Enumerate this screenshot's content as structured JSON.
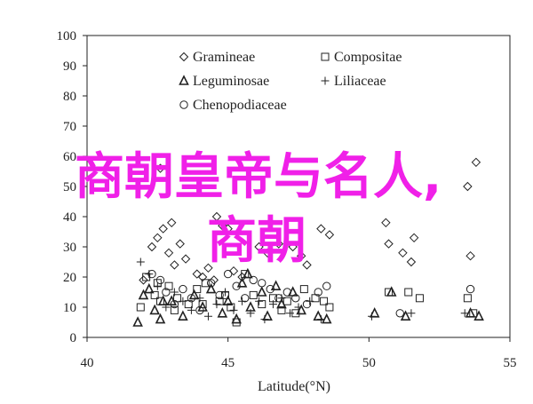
{
  "overlay": {
    "line1": "商朝皇帝与名人,",
    "line2": "商朝",
    "color": "#f020e8"
  },
  "chart_data": {
    "type": "scatter",
    "xlabel": "Latitude(°N)",
    "ylabel": "",
    "xlim": [
      40,
      55
    ],
    "ylim": [
      0,
      100
    ],
    "xticks": [
      "40",
      "45",
      "50",
      "55"
    ],
    "yticks": [
      "0",
      "10",
      "20",
      "30",
      "40",
      "50",
      "60",
      "70",
      "80",
      "90",
      "100"
    ],
    "legend_position": "top-center",
    "grid": false,
    "series": [
      {
        "name": "Gramineae",
        "marker": "diamond",
        "points": [
          [
            42.0,
            19
          ],
          [
            42.3,
            30
          ],
          [
            42.5,
            33
          ],
          [
            42.7,
            36
          ],
          [
            43.0,
            38
          ],
          [
            42.9,
            28
          ],
          [
            43.3,
            31
          ],
          [
            43.1,
            24
          ],
          [
            43.5,
            26
          ],
          [
            43.9,
            21
          ],
          [
            44.1,
            20
          ],
          [
            44.3,
            23
          ],
          [
            44.6,
            40
          ],
          [
            44.8,
            37
          ],
          [
            45.0,
            36
          ],
          [
            44.5,
            19
          ],
          [
            45.2,
            22
          ],
          [
            45.5,
            20
          ],
          [
            46.1,
            30
          ],
          [
            46.4,
            28
          ],
          [
            46.8,
            31
          ],
          [
            47.3,
            30
          ],
          [
            47.6,
            27
          ],
          [
            47.8,
            24
          ],
          [
            48.3,
            36
          ],
          [
            48.6,
            34
          ],
          [
            50.6,
            38
          ],
          [
            50.7,
            31
          ],
          [
            51.2,
            28
          ],
          [
            51.6,
            33
          ],
          [
            51.5,
            25
          ],
          [
            53.5,
            50
          ],
          [
            53.8,
            58
          ],
          [
            53.6,
            27
          ],
          [
            42.6,
            56
          ]
        ]
      },
      {
        "name": "Compositae",
        "marker": "square",
        "points": [
          [
            41.9,
            10
          ],
          [
            42.1,
            20
          ],
          [
            42.4,
            14
          ],
          [
            42.6,
            12
          ],
          [
            42.9,
            17
          ],
          [
            43.2,
            13
          ],
          [
            43.6,
            11
          ],
          [
            43.9,
            16
          ],
          [
            44.2,
            18
          ],
          [
            44.7,
            12
          ],
          [
            44.9,
            14
          ],
          [
            45.1,
            10
          ],
          [
            45.3,
            5
          ],
          [
            45.6,
            21
          ],
          [
            45.9,
            14
          ],
          [
            46.2,
            11
          ],
          [
            46.6,
            13
          ],
          [
            46.9,
            9
          ],
          [
            47.1,
            12
          ],
          [
            47.4,
            8
          ],
          [
            47.7,
            16
          ],
          [
            48.1,
            13
          ],
          [
            48.4,
            12
          ],
          [
            48.6,
            10
          ],
          [
            50.7,
            15
          ],
          [
            51.4,
            15
          ],
          [
            51.8,
            13
          ],
          [
            53.5,
            13
          ],
          [
            53.7,
            8
          ],
          [
            44.1,
            11
          ],
          [
            42.5,
            18
          ],
          [
            43.1,
            9
          ]
        ]
      },
      {
        "name": "Leguminosae",
        "marker": "triangle",
        "points": [
          [
            41.8,
            5
          ],
          [
            42.0,
            14
          ],
          [
            42.2,
            16
          ],
          [
            42.4,
            9
          ],
          [
            42.6,
            6
          ],
          [
            43.0,
            12
          ],
          [
            43.4,
            7
          ],
          [
            43.8,
            14
          ],
          [
            44.1,
            10
          ],
          [
            44.4,
            16
          ],
          [
            44.8,
            8
          ],
          [
            45.0,
            12
          ],
          [
            45.3,
            6
          ],
          [
            45.5,
            18
          ],
          [
            45.8,
            10
          ],
          [
            46.2,
            15
          ],
          [
            46.4,
            7
          ],
          [
            46.7,
            17
          ],
          [
            46.9,
            11
          ],
          [
            47.3,
            15
          ],
          [
            47.6,
            9
          ],
          [
            48.2,
            7
          ],
          [
            48.5,
            6
          ],
          [
            50.2,
            8
          ],
          [
            50.8,
            15
          ],
          [
            51.3,
            7
          ],
          [
            53.6,
            8
          ],
          [
            53.9,
            7
          ],
          [
            45.7,
            21
          ],
          [
            42.7,
            12
          ]
        ]
      },
      {
        "name": "Liliaceae",
        "marker": "plus",
        "points": [
          [
            41.9,
            25
          ],
          [
            42.2,
            21
          ],
          [
            42.5,
            17
          ],
          [
            42.8,
            10
          ],
          [
            43.1,
            15
          ],
          [
            43.4,
            12
          ],
          [
            43.7,
            9
          ],
          [
            44.0,
            13
          ],
          [
            44.3,
            7
          ],
          [
            44.6,
            11
          ],
          [
            44.9,
            15
          ],
          [
            45.2,
            9
          ],
          [
            45.5,
            12
          ],
          [
            45.8,
            8
          ],
          [
            46.1,
            12
          ],
          [
            46.3,
            6
          ],
          [
            46.6,
            11
          ],
          [
            46.9,
            13
          ],
          [
            47.2,
            8
          ],
          [
            47.5,
            10
          ],
          [
            47.9,
            12
          ],
          [
            48.3,
            6
          ],
          [
            50.1,
            7
          ],
          [
            51.5,
            8
          ],
          [
            53.4,
            8
          ]
        ]
      },
      {
        "name": "Chenopodiaceae",
        "marker": "circle",
        "points": [
          [
            42.3,
            21
          ],
          [
            42.6,
            19
          ],
          [
            42.8,
            15
          ],
          [
            43.1,
            11
          ],
          [
            43.4,
            16
          ],
          [
            43.7,
            13
          ],
          [
            44.0,
            9
          ],
          [
            44.4,
            18
          ],
          [
            44.7,
            14
          ],
          [
            45.0,
            21
          ],
          [
            45.3,
            17
          ],
          [
            45.6,
            13
          ],
          [
            45.9,
            19
          ],
          [
            46.2,
            18
          ],
          [
            46.5,
            16
          ],
          [
            46.8,
            13
          ],
          [
            47.1,
            15
          ],
          [
            47.4,
            13
          ],
          [
            47.8,
            11
          ],
          [
            48.2,
            15
          ],
          [
            48.5,
            17
          ],
          [
            51.1,
            8
          ],
          [
            53.6,
            16
          ]
        ]
      }
    ]
  }
}
